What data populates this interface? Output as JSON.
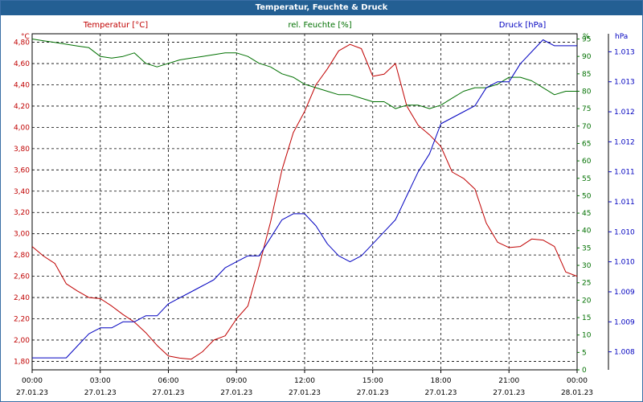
{
  "window": {
    "title": "Temperatur, Feuchte & Druck"
  },
  "colors": {
    "temperature": "#c00000",
    "humidity": "#007000",
    "pressure": "#0000c0",
    "titlebar": "#235f93",
    "grid": "#000000"
  },
  "axes": {
    "left": {
      "title": "Temperatur [°C]",
      "unit": "°C",
      "ticks": [
        "1,80",
        "2,00",
        "2,20",
        "2,40",
        "2,60",
        "2,80",
        "3,00",
        "3,20",
        "3,40",
        "3,60",
        "3,80",
        "4,00",
        "4,20",
        "4,40",
        "4,60",
        "4,80"
      ]
    },
    "mid": {
      "title": "rel. Feuchte [%]",
      "unit": "%",
      "ticks": [
        "0",
        "5",
        "10",
        "15",
        "20",
        "25",
        "30",
        "35",
        "40",
        "45",
        "50",
        "55",
        "60",
        "65",
        "70",
        "75",
        "80",
        "85",
        "90",
        "95"
      ]
    },
    "right": {
      "title": "Druck [hPa]",
      "unit": "hPa",
      "ticks": [
        "1.008",
        "1.009",
        "1.009",
        "1.010",
        "1.010",
        "1.011",
        "1.011",
        "1.012",
        "1.012",
        "1.013",
        "1.013"
      ]
    },
    "x": {
      "times": [
        "00:00",
        "03:00",
        "06:00",
        "09:00",
        "12:00",
        "15:00",
        "18:00",
        "21:00",
        "00:00"
      ],
      "dates": [
        "27.01.23",
        "27.01.23",
        "27.01.23",
        "27.01.23",
        "27.01.23",
        "27.01.23",
        "27.01.23",
        "27.01.23",
        "28.01.23"
      ]
    }
  },
  "chart_data": {
    "type": "line",
    "x_range_hours": [
      0,
      24
    ],
    "ylim_temperature": [
      1.72,
      4.88
    ],
    "ylim_humidity": [
      0,
      96.5
    ],
    "ylim_pressure": [
      1.0077,
      1.0133
    ],
    "grid": true,
    "series": [
      {
        "name": "Temperatur [°C]",
        "axis": "temperature",
        "x": [
          0,
          0.5,
          1,
          1.5,
          2,
          2.5,
          3,
          3.5,
          4,
          4.5,
          5,
          5.5,
          6,
          6.5,
          7,
          7.5,
          8,
          8.5,
          9,
          9.5,
          10,
          10.5,
          11,
          11.5,
          12,
          12.5,
          13,
          13.5,
          14,
          14.5,
          15,
          15.5,
          16,
          16.5,
          17,
          17.5,
          18,
          18.5,
          19,
          19.5,
          20,
          20.5,
          21,
          21.5,
          22,
          22.5,
          23,
          23.5,
          24
        ],
        "values": [
          2.88,
          2.79,
          2.72,
          2.53,
          2.46,
          2.4,
          2.39,
          2.32,
          2.24,
          2.17,
          2.07,
          1.95,
          1.85,
          1.83,
          1.82,
          1.89,
          2.0,
          2.04,
          2.2,
          2.32,
          2.7,
          3.11,
          3.6,
          3.95,
          4.15,
          4.4,
          4.55,
          4.72,
          4.78,
          4.74,
          4.48,
          4.5,
          4.6,
          4.2,
          4.02,
          3.93,
          3.82,
          3.58,
          3.52,
          3.42,
          3.1,
          2.92,
          2.87,
          2.88,
          2.95,
          2.94,
          2.88,
          2.64,
          2.6
        ]
      },
      {
        "name": "rel. Feuchte [%]",
        "axis": "humidity",
        "x": [
          0,
          0.5,
          1,
          1.5,
          2,
          2.5,
          3,
          3.5,
          4,
          4.5,
          5,
          5.5,
          6,
          6.5,
          7,
          7.5,
          8,
          8.5,
          9,
          9.5,
          10,
          10.5,
          11,
          11.5,
          12,
          12.5,
          13,
          13.5,
          14,
          14.5,
          15,
          15.5,
          16,
          16.5,
          17,
          17.5,
          18,
          18.5,
          19,
          19.5,
          20,
          20.5,
          21,
          21.5,
          22,
          22.5,
          23,
          23.5,
          24
        ],
        "values": [
          95,
          94.5,
          94,
          93.5,
          93,
          92.5,
          90,
          89.5,
          90,
          91,
          88,
          87,
          88,
          89,
          89.5,
          90,
          90.5,
          91,
          91,
          90,
          88,
          87,
          85,
          84,
          82,
          81,
          80,
          79,
          79,
          78,
          77,
          77,
          75,
          76,
          76,
          75,
          76,
          78,
          80,
          81,
          81,
          82,
          84,
          84,
          83,
          81,
          79,
          80,
          80
        ]
      },
      {
        "name": "Druck [hPa]",
        "axis": "pressure",
        "x": [
          0,
          0.5,
          1,
          1.5,
          2,
          2.5,
          3,
          3.5,
          4,
          4.5,
          5,
          5.5,
          6,
          6.5,
          7,
          7.5,
          8,
          8.5,
          9,
          9.5,
          10,
          10.5,
          11,
          11.5,
          12,
          12.5,
          13,
          13.5,
          14,
          14.5,
          15,
          15.5,
          16,
          16.5,
          17,
          17.5,
          18,
          18.5,
          19,
          19.5,
          20,
          20.5,
          21,
          21.5,
          22,
          22.5,
          23,
          23.5,
          24
        ],
        "values": [
          1.0079,
          1.0079,
          1.0079,
          1.0079,
          1.0081,
          1.0083,
          1.0084,
          1.0084,
          1.0085,
          1.0085,
          1.0086,
          1.0086,
          1.0088,
          1.0089,
          1.009,
          1.0091,
          1.0092,
          1.0094,
          1.0095,
          1.0096,
          1.0096,
          1.0099,
          1.0102,
          1.0103,
          1.0103,
          1.0101,
          1.0098,
          1.0096,
          1.0095,
          1.0096,
          1.0098,
          1.01,
          1.0102,
          1.0106,
          1.011,
          1.0113,
          1.0118,
          1.0119,
          1.012,
          1.0121,
          1.0124,
          1.0125,
          1.0125,
          1.0128,
          1.013,
          1.0132,
          1.0131,
          1.0131,
          1.0131
        ]
      }
    ]
  }
}
